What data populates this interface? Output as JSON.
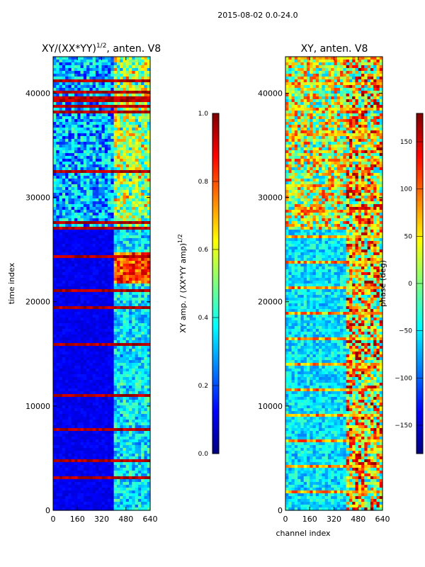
{
  "suptitle": "2015-08-02 0.0-24.0",
  "colors": {
    "jet": [
      "#00007f",
      "#0000ff",
      "#007fff",
      "#00ffff",
      "#7fff7f",
      "#ffff00",
      "#ff7f00",
      "#ff0000",
      "#7f0000"
    ]
  },
  "chart_data": [
    {
      "type": "heatmap",
      "title": "XY/(XX*YY)",
      "title_exponent": "1/2",
      "title_suffix": ", anten. V8",
      "xlabel": "",
      "ylabel": "time index",
      "xlim": [
        0,
        640
      ],
      "ylim": [
        0,
        43500
      ],
      "xticks": [
        0,
        160,
        320,
        480,
        640
      ],
      "yticks": [
        0,
        10000,
        20000,
        30000,
        40000
      ],
      "xtick_labels": [
        "0",
        "160",
        "320",
        "480",
        "640"
      ],
      "ytick_labels": [
        "0",
        "10000",
        "20000",
        "30000",
        "40000"
      ],
      "colormap": "jet",
      "colorbar": {
        "label": "XY amp. / (XX*YY amp)",
        "label_exponent": "1/2",
        "range": [
          0.0,
          1.0
        ],
        "ticks": [
          0.0,
          0.2,
          0.4,
          0.6,
          0.8,
          1.0
        ],
        "tick_labels": [
          "0.0",
          "0.2",
          "0.4",
          "0.6",
          "0.8",
          "1.0"
        ]
      },
      "notes": "mostly low values (dark blue); channels above ~400 brighter (0.4-0.9), bright blocks near time 22000-24000; horizontal high-value lines"
    },
    {
      "type": "heatmap",
      "title": "XY, anten. V8",
      "xlabel": "channel index",
      "ylabel": "",
      "xlim": [
        0,
        640
      ],
      "ylim": [
        0,
        43500
      ],
      "xticks": [
        0,
        160,
        320,
        480,
        640
      ],
      "yticks": [
        0,
        10000,
        20000,
        30000,
        40000
      ],
      "xtick_labels": [
        "0",
        "160",
        "320",
        "480",
        "640"
      ],
      "ytick_labels": [
        "0",
        "10000",
        "20000",
        "30000",
        "40000"
      ],
      "colormap": "jet",
      "colorbar": {
        "label": "phase (deg)",
        "range": [
          -180,
          180
        ],
        "ticks": [
          -150,
          -100,
          -50,
          0,
          50,
          100,
          150
        ],
        "tick_labels": [
          "−150",
          "−100",
          "−50",
          "0",
          "50",
          "100",
          "150"
        ]
      },
      "notes": "phase varies widely, warmer (positive) values in upper region and at channels 400-640"
    }
  ]
}
